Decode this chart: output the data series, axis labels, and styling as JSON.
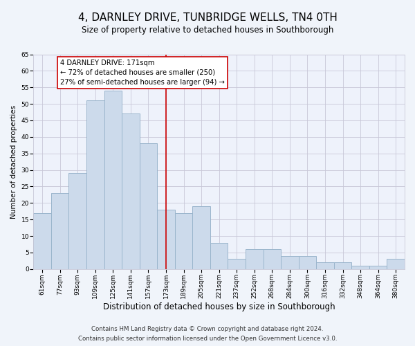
{
  "title": "4, DARNLEY DRIVE, TUNBRIDGE WELLS, TN4 0TH",
  "subtitle": "Size of property relative to detached houses in Southborough",
  "xlabel": "Distribution of detached houses by size in Southborough",
  "ylabel": "Number of detached properties",
  "bar_labels": [
    "61sqm",
    "77sqm",
    "93sqm",
    "109sqm",
    "125sqm",
    "141sqm",
    "157sqm",
    "173sqm",
    "189sqm",
    "205sqm",
    "221sqm",
    "237sqm",
    "252sqm",
    "268sqm",
    "284sqm",
    "300sqm",
    "316sqm",
    "332sqm",
    "348sqm",
    "364sqm",
    "380sqm"
  ],
  "bar_values": [
    17,
    23,
    29,
    51,
    54,
    47,
    38,
    18,
    17,
    19,
    8,
    3,
    6,
    6,
    4,
    4,
    2,
    2,
    1,
    1,
    3
  ],
  "bar_color": "#ccdaeb",
  "bar_edge_color": "#9ab5cc",
  "reference_line_x": 7,
  "reference_line_color": "#cc0000",
  "annotation_title": "4 DARNLEY DRIVE: 171sqm",
  "annotation_line1": "← 72% of detached houses are smaller (250)",
  "annotation_line2": "27% of semi-detached houses are larger (94) →",
  "annotation_box_color": "#ffffff",
  "annotation_box_edge_color": "#cc0000",
  "ylim": [
    0,
    65
  ],
  "yticks": [
    0,
    5,
    10,
    15,
    20,
    25,
    30,
    35,
    40,
    45,
    50,
    55,
    60,
    65
  ],
  "footnote1": "Contains HM Land Registry data © Crown copyright and database right 2024.",
  "footnote2": "Contains public sector information licensed under the Open Government Licence v3.0.",
  "background_color": "#f0f4fa",
  "plot_background_color": "#eef2fb",
  "grid_color": "#c8c8d8",
  "title_fontsize": 11,
  "subtitle_fontsize": 8.5,
  "xlabel_fontsize": 8.5,
  "ylabel_fontsize": 7.5,
  "tick_fontsize": 6.5,
  "annotation_fontsize": 7.2,
  "footnote_fontsize": 6.2
}
